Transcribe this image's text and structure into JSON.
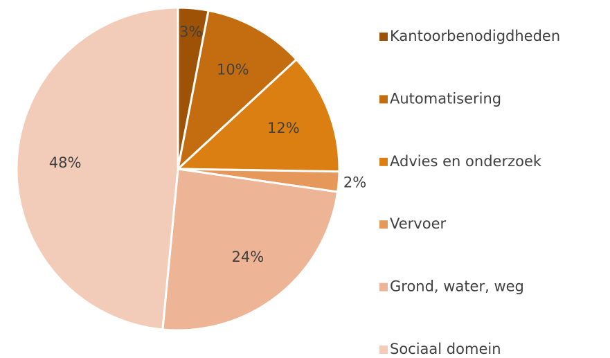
{
  "chart_data": {
    "type": "pie",
    "categories": [
      "Kantoorbenodigdheden",
      "Automatisering",
      "Advies en onderzoek",
      "Vervoer",
      "Grond, water, weg",
      "Sociaal domein"
    ],
    "values": [
      3,
      10,
      12,
      2,
      24,
      48
    ],
    "value_labels": [
      "3%",
      "10%",
      "12%",
      "2%",
      "24%",
      "48%"
    ],
    "colors": [
      "#9e5206",
      "#c46d10",
      "#db7f12",
      "#e6975a",
      "#edb495",
      "#f2ccb9"
    ],
    "legend": "right"
  }
}
